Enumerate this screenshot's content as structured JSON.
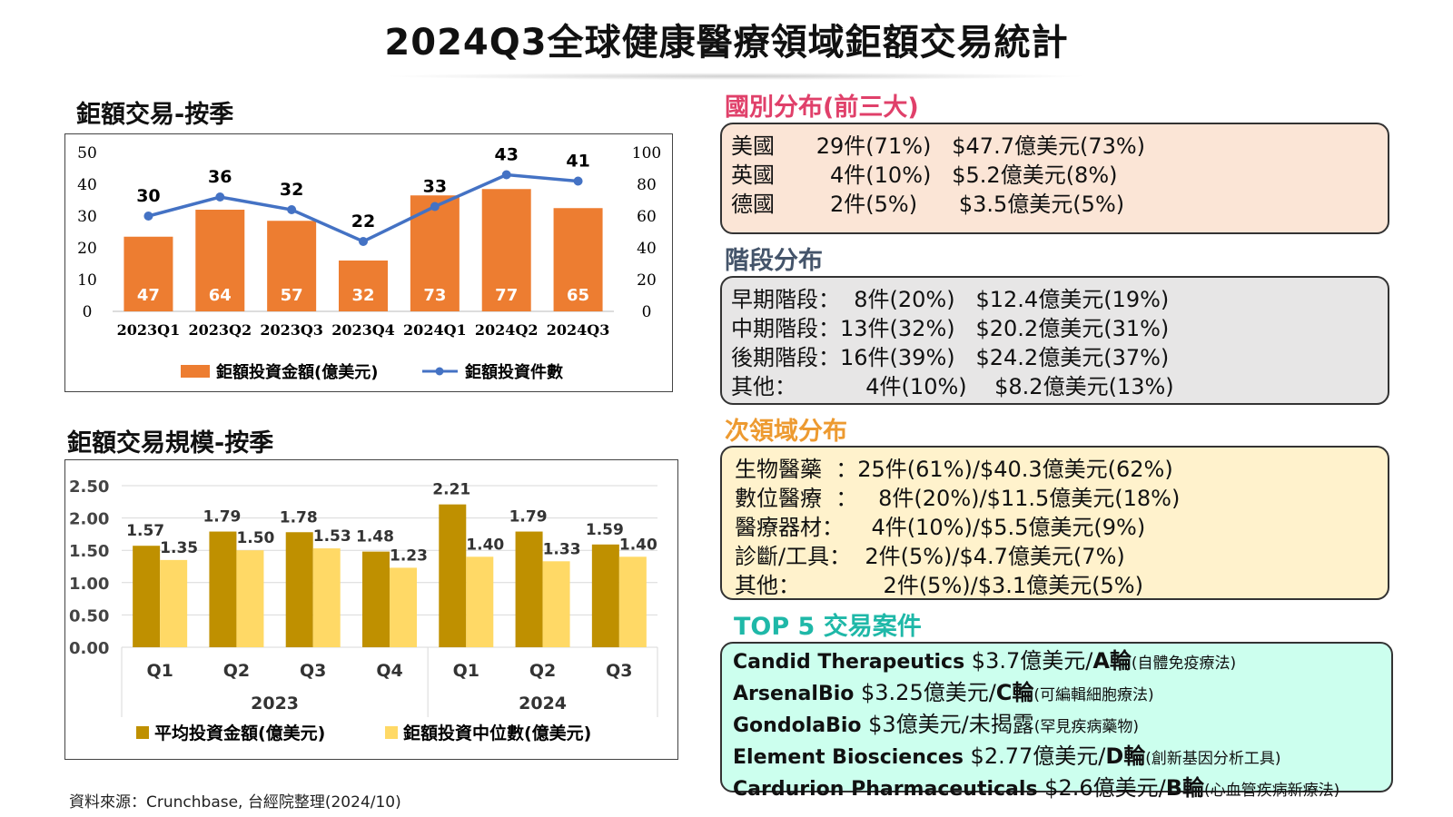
{
  "title": "2024Q3全球健康醫療領域鉅額交易統計",
  "left": {
    "chart1_heading": "鉅額交易-按季",
    "chart2_heading": "鉅額交易規模-按季",
    "source": "資料來源：Crunchbase, 台經院整理(2024/10)"
  },
  "colors": {
    "bar_orange": "#ED7D31",
    "line_blue": "#4472C4",
    "bar_gold": "#BF9000",
    "bar_yellow": "#FFD966",
    "country_bg": "#FBE5D6",
    "stage_bg": "#E7E6E6",
    "subfield_bg": "#FFF2CC",
    "top5_bg": "#CCFFEE",
    "country_heading": "#E0406A",
    "stage_heading": "#44546A",
    "subfield_heading": "#ED9A30",
    "top5_heading": "#1FB8A8"
  },
  "chart_data": [
    {
      "type": "bar",
      "categories": [
        "2023Q1",
        "2023Q2",
        "2023Q3",
        "2023Q4",
        "2024Q1",
        "2024Q2",
        "2024Q3"
      ],
      "series": [
        {
          "name": "鉅額投資金額(億美元)",
          "axis": "left",
          "values": [
            47,
            64,
            57,
            32,
            73,
            77,
            65
          ],
          "data_labels": [
            "47",
            "64",
            "57",
            "32",
            "73",
            "77",
            "65"
          ]
        },
        {
          "name": "鉅額投資件數",
          "axis": "right",
          "type": "line",
          "values": [
            30,
            36,
            32,
            22,
            33,
            43,
            41
          ],
          "data_labels": [
            "30",
            "36",
            "32",
            "22",
            "33",
            "43",
            "41"
          ]
        }
      ],
      "left_ticks": [
        "0",
        "10",
        "20",
        "30",
        "40",
        "50"
      ],
      "right_ticks": [
        "0",
        "20",
        "40",
        "60",
        "80",
        "100"
      ],
      "ylim_left": [
        0,
        50
      ],
      "ylim_right": [
        0,
        100
      ],
      "legend": "bottom",
      "grid": false
    },
    {
      "type": "bar",
      "categories": [
        "Q1",
        "Q2",
        "Q3",
        "Q4",
        "Q1",
        "Q2",
        "Q3"
      ],
      "groups": [
        "2023",
        "2024"
      ],
      "series": [
        {
          "name": "平均投資金額(億美元)",
          "values": [
            1.57,
            1.79,
            1.78,
            1.48,
            2.21,
            1.79,
            1.59
          ],
          "data_labels": [
            "1.57",
            "1.79",
            "1.78",
            "1.48",
            "2.21",
            "1.79",
            "1.59"
          ]
        },
        {
          "name": "鉅額投資中位數(億美元)",
          "values": [
            1.35,
            1.5,
            1.53,
            1.23,
            1.4,
            1.33,
            1.4
          ],
          "data_labels": [
            "1.35",
            "1.50",
            "1.53",
            "1.23",
            "1.40",
            "1.33",
            "1.40"
          ]
        }
      ],
      "y_ticks": [
        "0.00",
        "0.50",
        "1.00",
        "1.50",
        "2.00",
        "2.50"
      ],
      "ylim": [
        0,
        2.5
      ],
      "legend": "bottom",
      "grid": true
    }
  ],
  "country": {
    "heading": "國別分布(前三大)",
    "lines": [
      "美國      29件(71%)   $47.7億美元(73%)",
      "英國        4件(10%)   $5.2億美元(8%)",
      "德國        2件(5%)      $3.5億美元(5%)"
    ]
  },
  "stage": {
    "heading": "階段分布",
    "lines": [
      "早期階段：  8件(20%)   $12.4億美元(19%)",
      "中期階段：13件(32%)   $20.2億美元(31%)",
      "後期階段：16件(39%)   $24.2億美元(37%)",
      "其他：          4件(10%)    $8.2億美元(13%)"
    ]
  },
  "subfield": {
    "heading": "次領域分布",
    "lines": [
      "生物醫藥  ：25件(61%)/$40.3億美元(62%)",
      "數位醫療  ：   8件(20%)/$11.5億美元(18%)",
      "醫療器材：    4件(10%)/$5.5億美元(9%)",
      "診斷/工具：  2件(5%)/$4.7億美元(7%)",
      "其他：            2件(5%)/$3.1億美元(5%)"
    ]
  },
  "top5": {
    "heading": "TOP 5 交易案件",
    "deals": [
      {
        "name": "Candid Therapeutics",
        "amount": " $3.7億美元/",
        "round": "A輪",
        "note": "(自體免疫療法)"
      },
      {
        "name": "ArsenalBio",
        "amount": " $3.25億美元/",
        "round": "C輪",
        "note": "(可編輯細胞療法)"
      },
      {
        "name": "GondolaBio",
        "amount": " $3億美元/",
        "round": "未揭露",
        "note": "(罕見疾病藥物)"
      },
      {
        "name": "Element Biosciences",
        "amount": " $2.77億美元/",
        "round": "D輪",
        "note": "(創新基因分析工具)"
      },
      {
        "name": "Cardurion Pharmaceuticals",
        "amount": " $2.6億美元/",
        "round": "B輪",
        "note": "(心血管疾病新療法)"
      }
    ]
  }
}
